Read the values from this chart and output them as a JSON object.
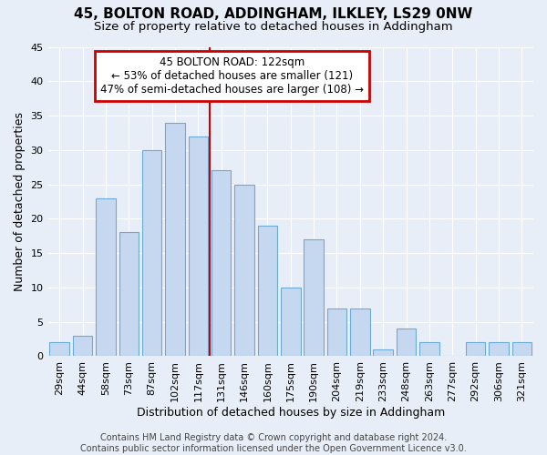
{
  "title": "45, BOLTON ROAD, ADDINGHAM, ILKLEY, LS29 0NW",
  "subtitle": "Size of property relative to detached houses in Addingham",
  "xlabel": "Distribution of detached houses by size in Addingham",
  "ylabel": "Number of detached properties",
  "bar_labels": [
    "29sqm",
    "44sqm",
    "58sqm",
    "73sqm",
    "87sqm",
    "102sqm",
    "117sqm",
    "131sqm",
    "146sqm",
    "160sqm",
    "175sqm",
    "190sqm",
    "204sqm",
    "219sqm",
    "233sqm",
    "248sqm",
    "263sqm",
    "277sqm",
    "292sqm",
    "306sqm",
    "321sqm"
  ],
  "bar_values": [
    2,
    3,
    23,
    18,
    30,
    34,
    32,
    27,
    25,
    19,
    10,
    17,
    7,
    7,
    1,
    4,
    2,
    0,
    2,
    2,
    2
  ],
  "bar_color": "#c5d8f0",
  "bar_edge_color": "#6aaad4",
  "ylim": [
    0,
    45
  ],
  "yticks": [
    0,
    5,
    10,
    15,
    20,
    25,
    30,
    35,
    40,
    45
  ],
  "vline_color": "#cc0000",
  "annotation_text": "45 BOLTON ROAD: 122sqm\n← 53% of detached houses are smaller (121)\n47% of semi-detached houses are larger (108) →",
  "annotation_box_color": "#cc0000",
  "footer": "Contains HM Land Registry data © Crown copyright and database right 2024.\nContains public sector information licensed under the Open Government Licence v3.0.",
  "bg_color": "#e8eef8",
  "plot_bg_color": "#e8eef8",
  "title_fontsize": 11,
  "subtitle_fontsize": 9.5,
  "axis_label_fontsize": 9,
  "tick_fontsize": 8,
  "footer_fontsize": 7
}
